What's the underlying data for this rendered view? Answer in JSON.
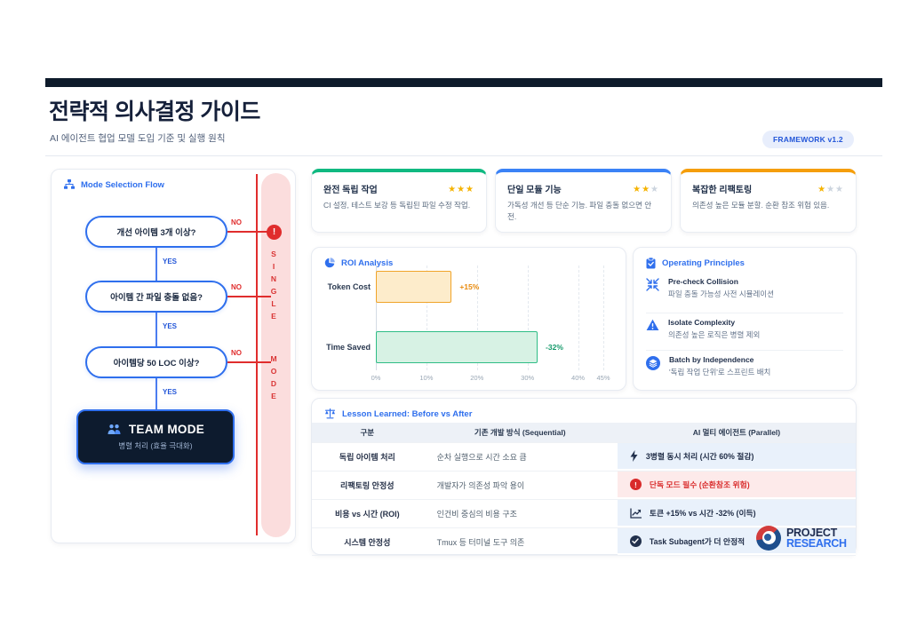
{
  "page": {
    "title": "전략적 의사결정 가이드",
    "subtitle": "AI 에이전트 협업 모델 도입 기준 및 실행 원칙",
    "badge": "FRAMEWORK v1.2"
  },
  "icons": {
    "star": "★",
    "alert": "!"
  },
  "flow": {
    "header": "Mode Selection Flow",
    "nodes": [
      "개선 아이템 3개 이상?",
      "아이템 간 파일 충돌 없음?",
      "아이템당 50 LOC 이상?"
    ],
    "yes_label": "YES",
    "no_label": "NO",
    "alert_glyph": "!",
    "single_word": "SINGLE",
    "mode_word": "MODE",
    "result": {
      "title": "TEAM MODE",
      "subtitle": "병렬 처리 (효율 극대화)"
    }
  },
  "cards": [
    {
      "title": "완전 독립 작업",
      "stars": 3,
      "accent": "#10b981",
      "body": "CI 설정, 테스트 보강 등 독립된 파일 수정 작업."
    },
    {
      "title": "단일 모듈 기능",
      "stars": 2,
      "accent": "#3b82f6",
      "body": "가독성 개선 등 단순 기능. 파일 충돌 없으면 안전."
    },
    {
      "title": "복잡한 리팩토링",
      "stars": 1,
      "accent": "#f59e0b",
      "body": "의존성 높은 모듈 분할. 순환 참조 위험 있음."
    }
  ],
  "chart_data": {
    "type": "bar",
    "orientation": "horizontal",
    "title": "ROI Analysis",
    "categories": [
      "Token Cost",
      "Time Saved"
    ],
    "values": [
      15,
      32
    ],
    "value_labels": [
      "+15%",
      "-32%"
    ],
    "bar_colors": [
      "#fdeccb",
      "#d7f2e4"
    ],
    "bar_borders": [
      "#f0a42a",
      "#2fbd86"
    ],
    "label_colors": [
      "#e88a0c",
      "#169a6b"
    ],
    "xticks": [
      "0%",
      "10%",
      "20%",
      "30%",
      "40%",
      "45%"
    ],
    "xlim": [
      0,
      45
    ],
    "grid": "vertical-dashed",
    "legend": "none"
  },
  "principles": {
    "header": "Operating Principles",
    "items": [
      {
        "icon": "compress-icon",
        "title": "Pre-check Collision",
        "desc": "파일 충돌 가능성 사전 시뮬레이션"
      },
      {
        "icon": "warning-icon",
        "title": "Isolate Complexity",
        "desc": "의존성 높은 로직은 병렬 제외"
      },
      {
        "icon": "layers-icon",
        "title": "Batch by Independence",
        "desc": "'독립 작업 단위'로 스프린트 배치"
      }
    ]
  },
  "table": {
    "header": "Lesson Learned: Before vs After",
    "columns": [
      "구분",
      "기존 개발 방식 (Sequential)",
      "AI 멀티 에이전트 (Parallel)"
    ],
    "rows": [
      {
        "label": "독립 아이템 처리",
        "before": "순차 실행으로 시간 소요 큼",
        "after": "3병렬 동시 처리 (시간 60% 절감)",
        "icon": "bolt-icon",
        "variant": "blue"
      },
      {
        "label": "리팩토링 안정성",
        "before": "개발자가 의존성 파악 용이",
        "after": "단독 모드 필수 (순환참조 위험)",
        "icon": "alert-circle-icon",
        "variant": "red"
      },
      {
        "label": "비용 vs 시간 (ROI)",
        "before": "인건비 중심의 비용 구조",
        "after": "토큰 +15% vs 시간 -32% (이득)",
        "icon": "chart-line-icon",
        "variant": "blue"
      },
      {
        "label": "시스템 안정성",
        "before": "Tmux 등 터미널 도구 의존",
        "after": "Task Subagent가 더 안정적",
        "icon": "check-circle-icon",
        "variant": "blue"
      }
    ]
  },
  "logo": {
    "line1": "PROJECT",
    "line2": "RESEARCH"
  }
}
